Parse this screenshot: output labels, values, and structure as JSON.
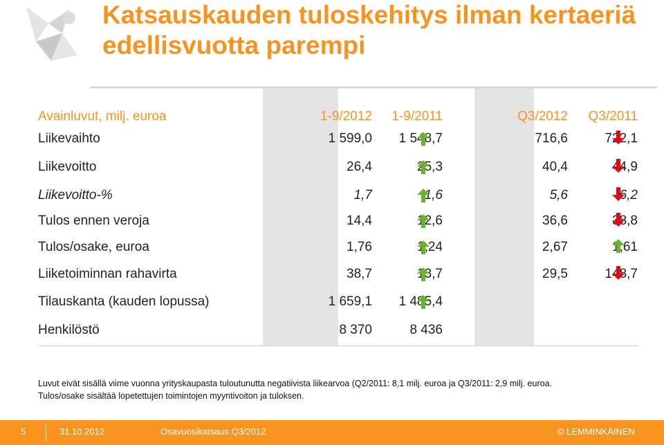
{
  "slide": {
    "title": "Katsauskauden tuloskehitys ilman kertaeriä edellisvuotta parempi"
  },
  "colors": {
    "accent": "#f7931e",
    "arrow_up": "#6ab42d",
    "arrow_down": "#e30613",
    "column_shade": "#e4e4e4"
  },
  "table": {
    "headers": [
      "Avainluvut, milj. euroa",
      "1-9/2012",
      "1-9/2011",
      "Q3/2012",
      "Q3/2011"
    ],
    "rows": [
      {
        "label": "Liikevaihto",
        "v1": "1 599,0",
        "v2": "1 548,7",
        "arrow1": "up",
        "v3": "716,6",
        "v4": "722,1",
        "arrow2": "down",
        "italic": false
      },
      {
        "label": "Liikevoitto",
        "v1": "26,4",
        "v2": "25,3",
        "arrow1": "up",
        "v3": "40,4",
        "v4": "44,9",
        "arrow2": "down",
        "italic": false
      },
      {
        "label": "Liikevoitto-%",
        "v1": "1,7",
        "v2": "1,6",
        "arrow1": "up",
        "v3": "5,6",
        "v4": "6,2",
        "arrow2": "down",
        "italic": true
      },
      {
        "label": "Tulos ennen veroja",
        "v1": "14,4",
        "v2": "12,6",
        "arrow1": "up",
        "v3": "36,6",
        "v4": "38,8",
        "arrow2": "down",
        "italic": false
      },
      {
        "label": "Tulos/osake, euroa",
        "v1": "1,76",
        "v2": "1,24",
        "arrow1": "up",
        "v3": "2,67",
        "v4": "1,61",
        "arrow2": "up",
        "italic": false
      },
      {
        "label": "Liiketoiminnan rahavirta",
        "v1": "38,7",
        "v2": "13,7",
        "arrow1": "up",
        "v3": "29,5",
        "v4": "148,7",
        "arrow2": "down",
        "italic": false
      },
      {
        "label": "Tilauskanta (kauden lopussa)",
        "v1": "1 659,1",
        "v2": "1 485,4",
        "arrow1": "up",
        "v3": "",
        "v4": "",
        "arrow2": "",
        "italic": false
      },
      {
        "label": "Henkilöstö",
        "v1": "8 370",
        "v2": "8 436",
        "arrow1": "",
        "v3": "",
        "v4": "",
        "arrow2": "",
        "italic": false
      }
    ]
  },
  "notes": [
    "Luvut eivät sisällä viime vuonna yrityskaupasta tuloutunutta negatiivista liikearvoa (Q2/2011: 8,1 milj. euroa ja Q3/2011: 2,9 milj. euroa.",
    "Tulos/osake sisältää lopetettujen toimintojen myyntivoiton ja tuloksen."
  ],
  "footer": {
    "page_number": "5",
    "date": "31.10.2012",
    "report": "Osavuosikatsaus Q3/2012",
    "copyright": "© LEMMINKÄINEN"
  }
}
